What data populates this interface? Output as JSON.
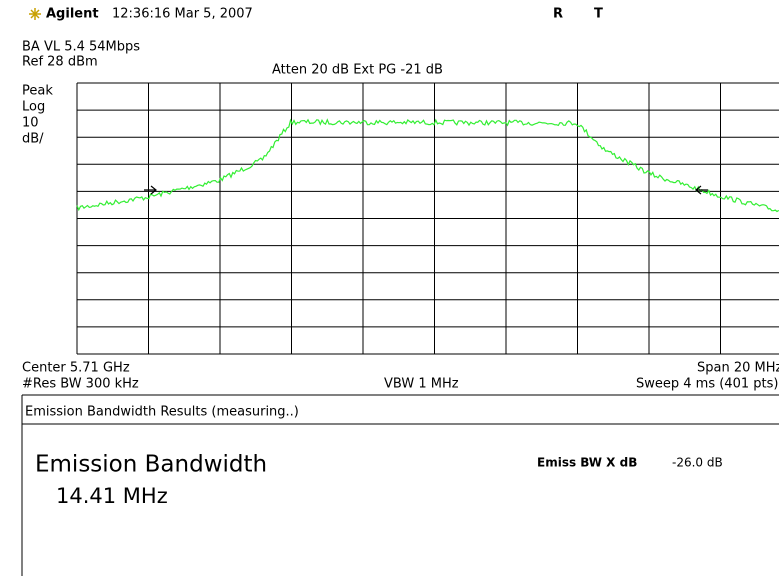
{
  "header": {
    "brand": "Agilent",
    "timestamp": "12:36:16 Mar 5, 2007",
    "flag_r": "R",
    "flag_t": "T"
  },
  "info": {
    "mode": "BA VL 5.4 54Mbps",
    "ref": "Ref 28 dBm",
    "atten": "Atten 20 dB  Ext PG -21 dB",
    "scale_lines": [
      "Peak",
      "Log",
      "10",
      "dB/"
    ]
  },
  "footer": {
    "center": "Center 5.71 GHz",
    "span": "Span 20 MHz",
    "rbw": "#Res BW 300 kHz",
    "vbw": "VBW 1 MHz",
    "sweep": "Sweep 4 ms (401 pts)"
  },
  "results": {
    "title": "Emission Bandwidth Results (measuring..)",
    "label": "Emission Bandwidth",
    "value": "14.41 MHz",
    "param_label": "Emiss BW X dB",
    "param_value": "-26.0 dB"
  }
}
